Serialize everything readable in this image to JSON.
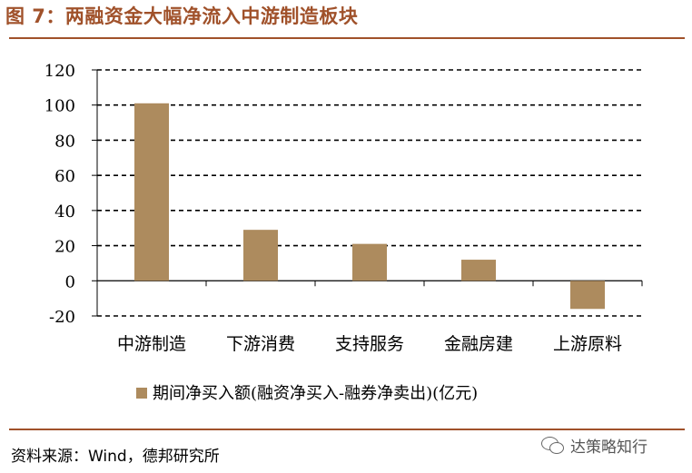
{
  "header": {
    "title": "图 7：两融资金大幅净流入中游制造板块"
  },
  "footer": {
    "source": "资料来源：Wind，德邦研究所",
    "watermark": "达策略知行"
  },
  "colors": {
    "bar": "#ad8b5e",
    "accent": "#a0512a",
    "grid": "#000000"
  },
  "chart_data": {
    "type": "bar",
    "title": "",
    "categories": [
      "中游制造",
      "下游消费",
      "支持服务",
      "金融房建",
      "上游原料"
    ],
    "series": [
      {
        "name": "期间净买入额(融资净买入-融券净卖出)(亿元)",
        "values": [
          101,
          29,
          21,
          12,
          -16
        ]
      }
    ],
    "yticks": [
      "120",
      "100",
      "80",
      "60",
      "40",
      "20",
      "0",
      "-20"
    ],
    "ylim": [
      -20,
      120
    ],
    "ystep": 20,
    "grid": true,
    "grid_style": "dashed",
    "legend_position": "bottom"
  }
}
